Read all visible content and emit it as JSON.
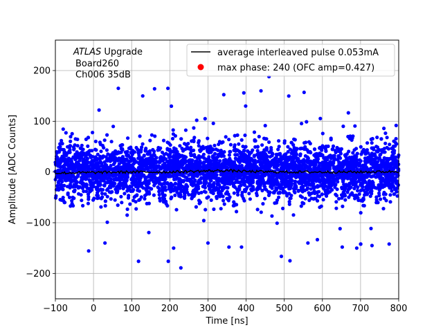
{
  "chart_data": {
    "type": "scatter",
    "xlabel": "Time [ns]",
    "ylabel": "Amplitude [ADC Counts]",
    "xlim": [
      -100,
      800
    ],
    "ylim": [
      -250,
      260
    ],
    "xticks": [
      -100,
      0,
      100,
      200,
      300,
      400,
      500,
      600,
      700,
      800
    ],
    "yticks": [
      -200,
      -100,
      0,
      100,
      200
    ],
    "grid": true,
    "annotation": {
      "line1_italic": "ATLAS",
      "line1_rest": " Upgrade",
      "line2": "Board260",
      "line3": "Ch006 35dB"
    },
    "legend": {
      "position": "top-right",
      "entries": [
        {
          "label": "average interleaved pulse 0.053mA",
          "marker": "line",
          "color": "#000000"
        },
        {
          "label": "max phase: 240 (OFC amp=0.427)",
          "marker": "dot",
          "color": "#ff0000"
        }
      ]
    },
    "series": [
      {
        "label_ref": "samples",
        "color": "#0000ff",
        "kind": "scatter",
        "x_range": [
          -100,
          800
        ],
        "core_band": [
          -60,
          60
        ],
        "outliers": [
          {
            "x": 460,
            "y": 188
          },
          {
            "x": 229,
            "y": -189
          },
          {
            "x": 196,
            "y": -176
          },
          {
            "x": 118,
            "y": -176
          },
          {
            "x": 160,
            "y": 164
          },
          {
            "x": 195,
            "y": 165
          },
          {
            "x": 65,
            "y": 165
          },
          {
            "x": 129,
            "y": 150
          },
          {
            "x": 439,
            "y": 160
          },
          {
            "x": 394,
            "y": 156
          },
          {
            "x": 552,
            "y": 157
          },
          {
            "x": 30,
            "y": -140
          },
          {
            "x": 355,
            "y": -148
          },
          {
            "x": 388,
            "y": -148
          },
          {
            "x": 652,
            "y": -148
          },
          {
            "x": 730,
            "y": -145
          },
          {
            "x": 775,
            "y": -142
          },
          {
            "x": 210,
            "y": -150
          },
          {
            "x": 300,
            "y": -140
          },
          {
            "x": 562,
            "y": -140
          },
          {
            "x": 690,
            "y": -150
          }
        ]
      },
      {
        "label_ref": "average interleaved pulse 0.053mA",
        "color": "#000000",
        "kind": "line",
        "x": [
          -100,
          0,
          100,
          200,
          300,
          350,
          400,
          500,
          600,
          700,
          800
        ],
        "y": [
          -2,
          -1,
          0,
          0,
          2,
          3,
          1,
          0,
          0,
          0,
          1
        ]
      }
    ]
  }
}
